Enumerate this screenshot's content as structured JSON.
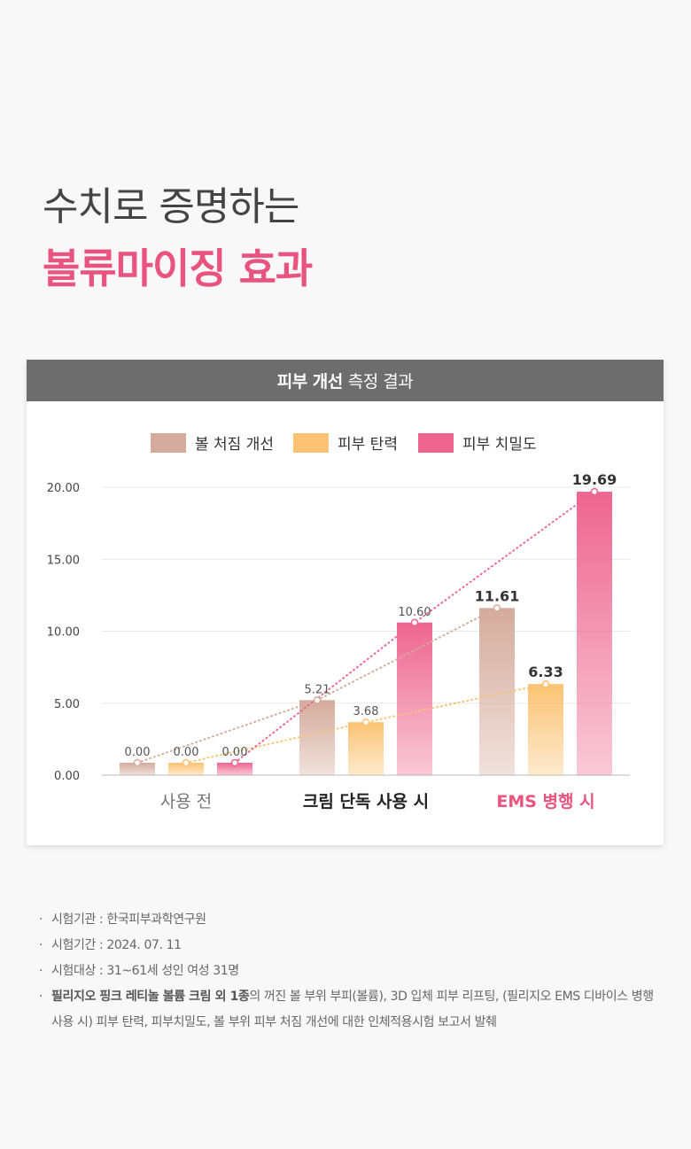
{
  "headline": {
    "line1": "수치로 증명하는",
    "line2": "볼류마이징 효과",
    "accent_color": "#e9537f"
  },
  "card": {
    "header_bold": "피부 개선",
    "header_rest": "측정 결과"
  },
  "chart_data": {
    "type": "bar",
    "categories": [
      "사용 전",
      "크림 단독 사용 시",
      "EMS 병행 시"
    ],
    "category_colors": [
      "#777777",
      "#222222",
      "#e9537f"
    ],
    "series": [
      {
        "name": "볼 처짐 개선",
        "values": [
          0.0,
          5.21,
          11.61
        ],
        "color": "#d4ab9c"
      },
      {
        "name": "피부 탄력",
        "values": [
          0.0,
          3.68,
          6.33
        ],
        "color": "#fbc373"
      },
      {
        "name": "피부 치밀도",
        "values": [
          0.0,
          10.6,
          19.69
        ],
        "color": "#ee6590"
      }
    ],
    "value_labels": [
      [
        "0.00",
        "5.21",
        "11.61"
      ],
      [
        "0.00",
        "3.68",
        "6.33"
      ],
      [
        "0.00",
        "10.60",
        "19.69"
      ]
    ],
    "yticks": [
      "0.00",
      "5.00",
      "10.00",
      "15.00",
      "20.00"
    ],
    "ylim": [
      0,
      20
    ],
    "grid": true,
    "legend": "top-center",
    "trend_lines": true
  },
  "notes": {
    "items": [
      {
        "bullet": "·",
        "text": "시험기관 : 한국피부과학연구원"
      },
      {
        "bullet": "·",
        "text": "시험기간 : 2024. 07. 11"
      },
      {
        "bullet": "·",
        "text": "시험대상 : 31~61세 성인 여성 31명"
      }
    ],
    "last": {
      "bullet": "·",
      "bold": "필리지오 핑크 레티놀 볼륨 크림 외 1종",
      "text": "의 꺼진 볼 부위 부피(볼륨), 3D 입체 피부 리프팅, (필리지오 EMS 디바이스 병행 사용 시) 피부 탄력, 피부치밀도, 볼 부위 피부 처짐 개선에 대한 인체적용시험 보고서 발췌"
    }
  }
}
